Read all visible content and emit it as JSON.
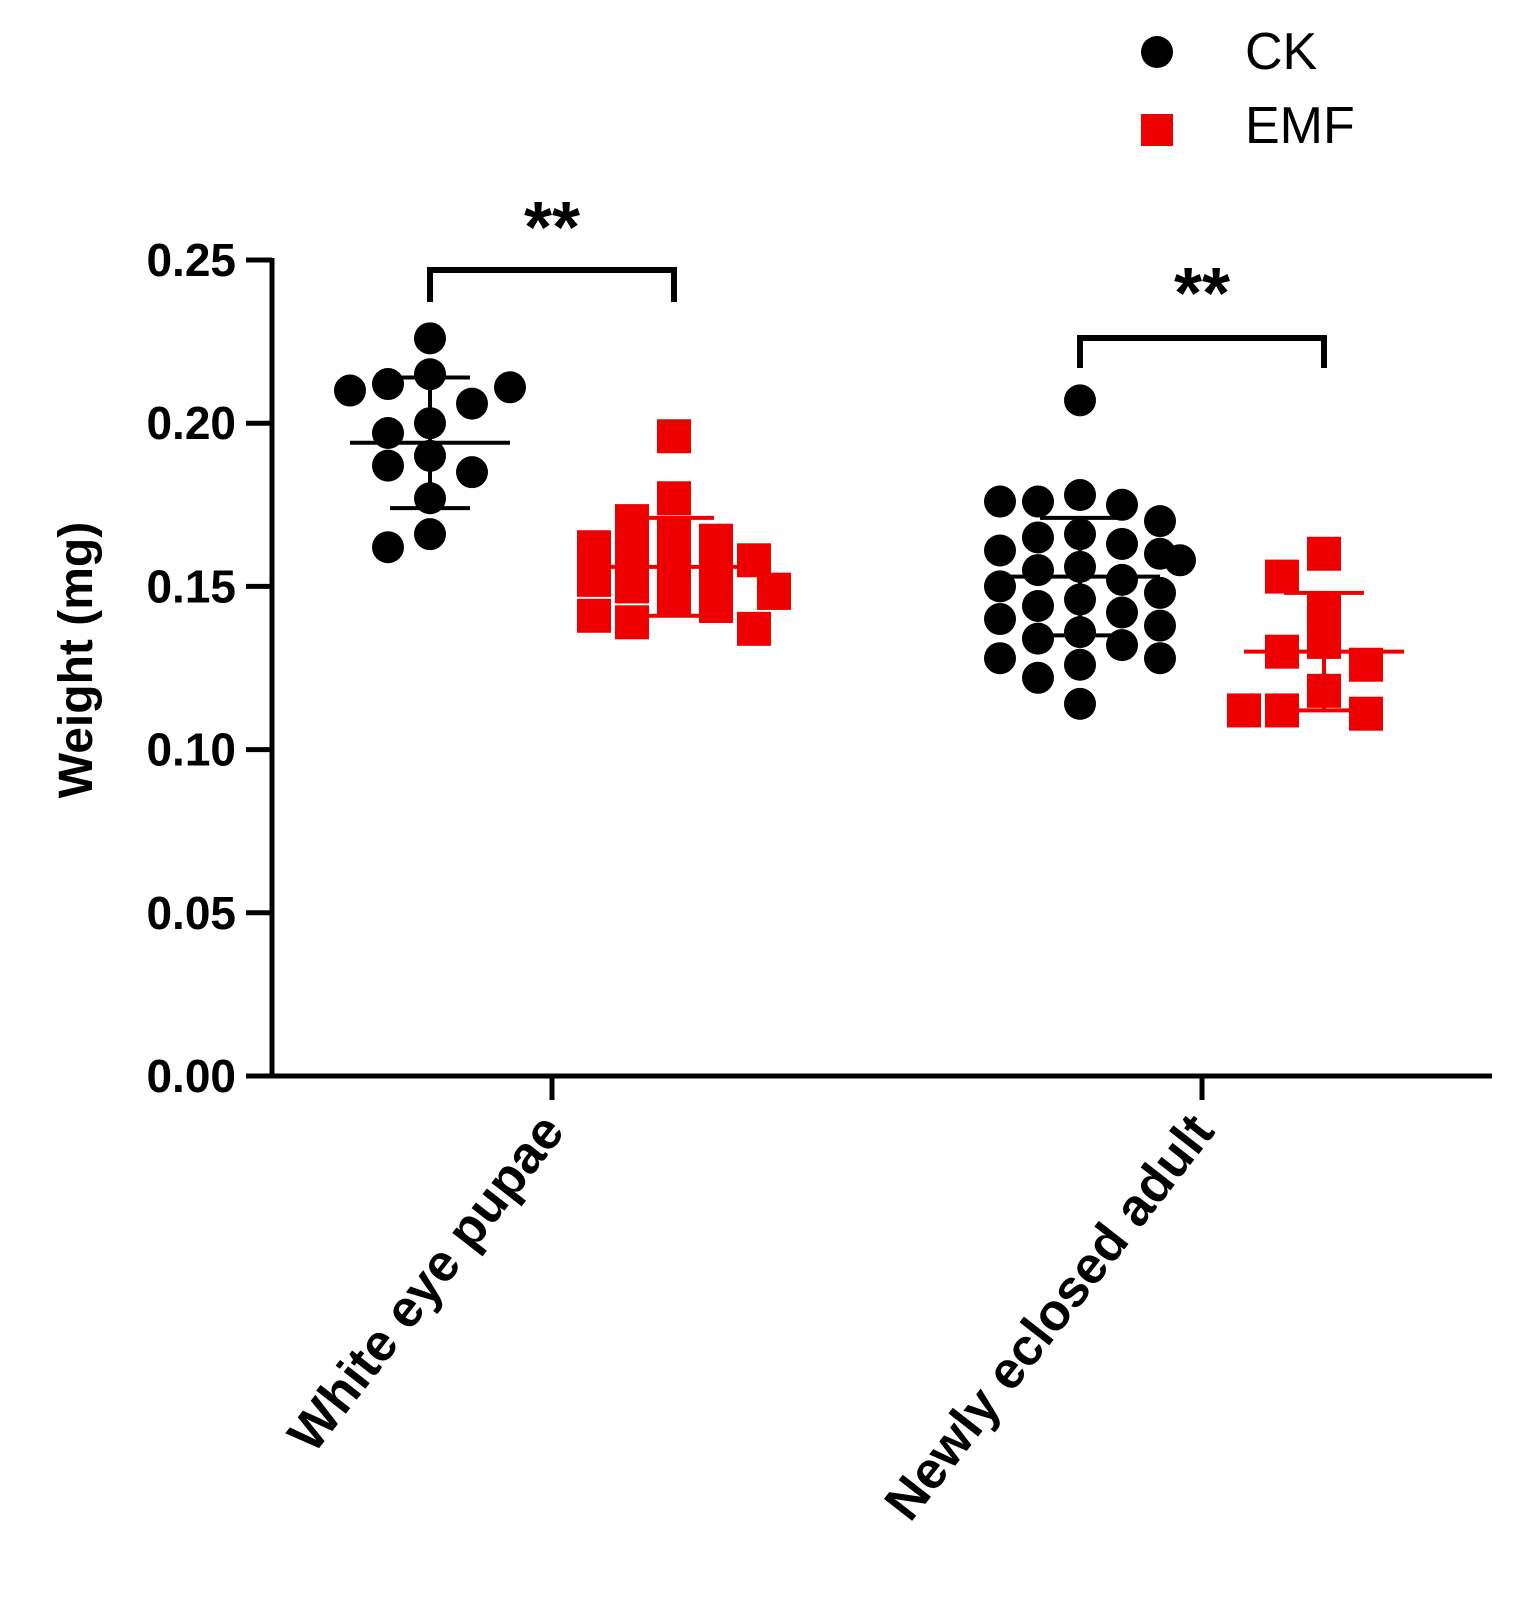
{
  "chart_data": {
    "type": "scatter",
    "ylabel": "Weight (mg)",
    "ylim": [
      0,
      0.25
    ],
    "yticks": [
      "0.00",
      "0.05",
      "0.10",
      "0.15",
      "0.20",
      "0.25"
    ],
    "categories": [
      "White eye pupae",
      "Newly eclosed adult"
    ],
    "legend_position": "top-right",
    "series": [
      {
        "name": "CK",
        "color": "#000000",
        "marker": "circle",
        "groups": [
          {
            "values": [
              0.226,
              0.215,
              0.212,
              0.206,
              0.21,
              0.211,
              0.2,
              0.197,
              0.19,
              0.187,
              0.185,
              0.177,
              0.166,
              0.162
            ],
            "mean": 0.194,
            "sd_upper": 0.214,
            "sd_lower": 0.174
          },
          {
            "values": [
              0.207,
              0.178,
              0.176,
              0.175,
              0.176,
              0.17,
              0.166,
              0.165,
              0.163,
              0.161,
              0.16,
              0.158,
              0.156,
              0.155,
              0.152,
              0.15,
              0.148,
              0.146,
              0.144,
              0.142,
              0.14,
              0.138,
              0.136,
              0.134,
              0.132,
              0.128,
              0.128,
              0.126,
              0.122,
              0.114
            ],
            "mean": 0.153,
            "sd_upper": 0.171,
            "sd_lower": 0.135
          }
        ]
      },
      {
        "name": "EMF",
        "color": "#ee0000",
        "marker": "square",
        "groups": [
          {
            "values": [
              0.196,
              0.177,
              0.17,
              0.166,
              0.164,
              0.162,
              0.16,
              0.158,
              0.156,
              0.154,
              0.152,
              0.15,
              0.149,
              0.148,
              0.146,
              0.144,
              0.141,
              0.139,
              0.137
            ],
            "mean": 0.156,
            "sd_upper": 0.171,
            "sd_lower": 0.141
          },
          {
            "values": [
              0.16,
              0.153,
              0.143,
              0.133,
              0.13,
              0.126,
              0.118,
              0.112,
              0.111,
              0.112
            ],
            "mean": 0.13,
            "sd_upper": 0.148,
            "sd_lower": 0.112
          }
        ]
      }
    ],
    "annotations": [
      {
        "group": 0,
        "text": "**"
      },
      {
        "group": 1,
        "text": "**"
      }
    ]
  }
}
